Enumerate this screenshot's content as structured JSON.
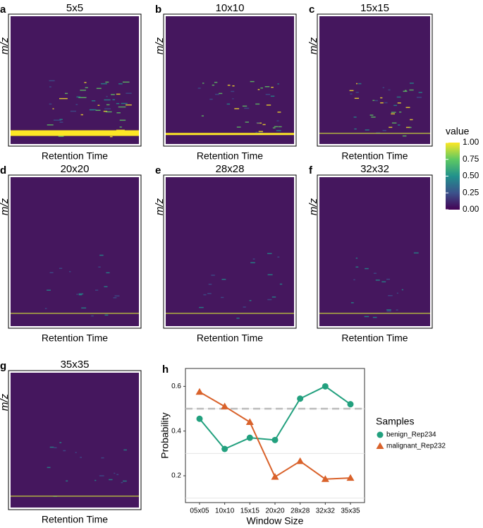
{
  "panels": [
    {
      "letter": "a",
      "title": "5x5",
      "ylabel": "m/z",
      "xlabel": "Retention Time"
    },
    {
      "letter": "b",
      "title": "10x10",
      "ylabel": "m/z",
      "xlabel": "Retention Time"
    },
    {
      "letter": "c",
      "title": "15x15",
      "ylabel": "m/z",
      "xlabel": "Retention Time"
    },
    {
      "letter": "d",
      "title": "20x20",
      "ylabel": "m/z",
      "xlabel": "Retention Time"
    },
    {
      "letter": "e",
      "title": "28x28",
      "ylabel": "m/z",
      "xlabel": "Retention Time"
    },
    {
      "letter": "f",
      "title": "32x32",
      "ylabel": "m/z",
      "xlabel": "Retention Time"
    },
    {
      "letter": "g",
      "title": "35x35",
      "ylabel": "m/z",
      "xlabel": "Retention Time"
    }
  ],
  "colorbar": {
    "title": "value",
    "lim": [
      0,
      1
    ],
    "ticks": [
      {
        "value": 1,
        "label": "1.00"
      },
      {
        "value": 0.75,
        "label": "0.75"
      },
      {
        "value": 0.5,
        "label": "0.50"
      },
      {
        "value": 0.25,
        "label": "0.25"
      },
      {
        "value": 0,
        "label": "0.00"
      }
    ]
  },
  "chart_data": {
    "type": "line",
    "letter": "h",
    "xlabel": "Window Size",
    "ylabel": "Probability",
    "categories": [
      "05x05",
      "10x10",
      "15x15",
      "20x20",
      "28x28",
      "32x32",
      "35x35"
    ],
    "series": [
      {
        "name": "benign_Rep234",
        "color": "#22a07e",
        "marker": "circle",
        "values": [
          0.455,
          0.32,
          0.37,
          0.36,
          0.545,
          0.6,
          0.52
        ]
      },
      {
        "name": "malignant_Rep232",
        "color": "#d9622b",
        "marker": "triangle",
        "values": [
          0.575,
          0.51,
          0.44,
          0.195,
          0.265,
          0.185,
          0.19
        ]
      }
    ],
    "ylim": [
      0.08,
      0.68
    ],
    "yticks": [
      0.2,
      0.4,
      0.6
    ],
    "minor_yticks": [
      0.1,
      0.3,
      0.5
    ],
    "reference_line": 0.5,
    "legend_title": "Samples",
    "legend": "right"
  }
}
